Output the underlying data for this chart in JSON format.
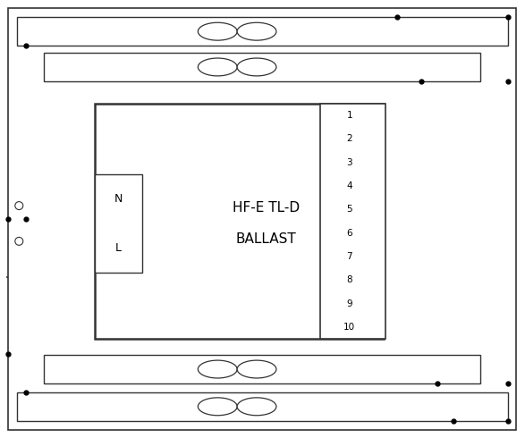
{
  "bg_color": "#ffffff",
  "line_color": "#333333",
  "figsize": [
    5.87,
    4.9
  ],
  "dpi": 100,
  "ballast_label1": "HF-E TL-D",
  "ballast_label2": "BALLAST",
  "terminal_labels": [
    "1",
    "2",
    "3",
    "4",
    "5",
    "6",
    "7",
    "8",
    "9",
    "10"
  ]
}
